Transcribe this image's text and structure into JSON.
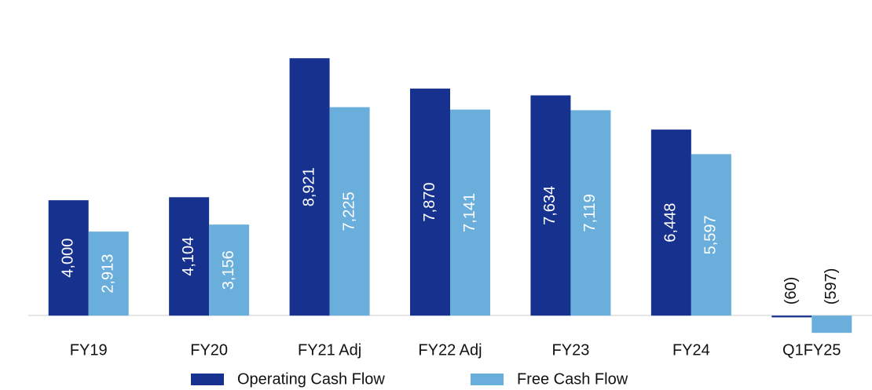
{
  "chart_data": {
    "type": "bar",
    "categories": [
      "FY19",
      "FY20",
      "FY21 Adj",
      "FY22 Adj",
      "FY23",
      "FY24",
      "Q1FY25"
    ],
    "series": [
      {
        "name": "Operating Cash Flow",
        "color": "#17318f",
        "values": [
          4000,
          4104,
          8921,
          7870,
          7634,
          6448,
          -60
        ],
        "value_labels": [
          "4,000",
          "4,104",
          "8,921",
          "7,870",
          "7,634",
          "6,448",
          "(60)"
        ]
      },
      {
        "name": "Free Cash Flow",
        "color": "#6aaedc",
        "values": [
          2913,
          3156,
          7225,
          7141,
          7119,
          5597,
          -597
        ],
        "value_labels": [
          "2,913",
          "3,156",
          "7,225",
          "7,141",
          "7,119",
          "5,597",
          "(597)"
        ]
      }
    ],
    "ylim": [
      -1000,
      9000
    ],
    "legend": "bottom"
  }
}
